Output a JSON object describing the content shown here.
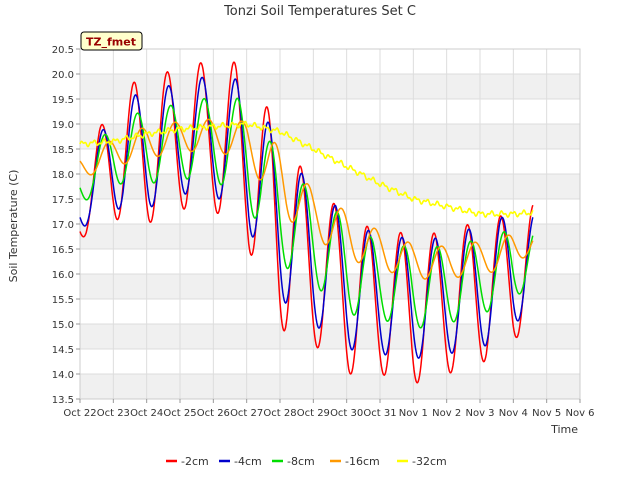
{
  "chart_data": {
    "type": "line",
    "title": "Tonzi Soil Temperatures Set C",
    "xlabel": "Time",
    "ylabel": "Soil Temperature (C)",
    "station_tag": "TZ_fmet",
    "ylim": [
      13.5,
      20.5
    ],
    "yticks": [
      13.5,
      14.0,
      14.5,
      15.0,
      15.5,
      16.0,
      16.5,
      17.0,
      17.5,
      18.0,
      18.5,
      19.0,
      19.5,
      20.0,
      20.5
    ],
    "ytick_labels": [
      "13.5",
      "14.0",
      "14.5",
      "15.0",
      "15.5",
      "16.0",
      "16.5",
      "17.0",
      "17.5",
      "18.0",
      "18.5",
      "19.0",
      "19.5",
      "20.0",
      "20.5"
    ],
    "x_start": "Oct 22",
    "xtick_labels": [
      "Oct 22",
      "Oct 23",
      "Oct 24",
      "Oct 25",
      "Oct 26",
      "Oct 27",
      "Oct 28",
      "Oct 29",
      "Oct 30",
      "Oct 31",
      "Nov 1",
      "Nov 2",
      "Nov 3",
      "Nov 4",
      "Nov 5",
      "Nov 6"
    ],
    "grid": true,
    "legend_position": "bottom",
    "daily": {
      "days": [
        "Oct 22",
        "Oct 23",
        "Oct 24",
        "Oct 25",
        "Oct 26",
        "Oct 27",
        "Oct 28",
        "Oct 29",
        "Oct 30",
        "Oct 31",
        "Nov 1",
        "Nov 2",
        "Nov 3",
        "Nov 4",
        "Nov 5"
      ],
      "note_x": "each series value pair = [daily minimum, daily maximum]"
    },
    "series": [
      {
        "name": "-2cm",
        "color": "#ff0000",
        "daily_min": [
          16.7,
          17.1,
          17.0,
          17.3,
          17.3,
          16.6,
          14.9,
          14.6,
          14.0,
          14.0,
          13.8,
          14.0,
          14.2,
          14.6,
          15.8
        ],
        "daily_max": [
          17.8,
          19.65,
          19.95,
          20.1,
          20.3,
          20.2,
          18.8,
          17.75,
          17.2,
          16.8,
          16.85,
          16.8,
          17.1,
          17.2,
          17.55
        ]
      },
      {
        "name": "-4cm",
        "color": "#0000cc",
        "daily_min": [
          16.9,
          17.3,
          17.3,
          17.6,
          17.6,
          17.0,
          15.5,
          15.0,
          14.5,
          14.4,
          14.3,
          14.4,
          14.5,
          14.9,
          16.0
        ],
        "daily_max": [
          17.9,
          19.35,
          19.7,
          19.8,
          20.0,
          19.85,
          18.6,
          17.7,
          17.2,
          16.7,
          16.75,
          16.7,
          17.0,
          17.2,
          17.25
        ]
      },
      {
        "name": "-8cm",
        "color": "#00dd00",
        "daily_min": [
          17.4,
          17.8,
          17.8,
          17.9,
          17.9,
          17.4,
          16.2,
          15.8,
          15.2,
          15.1,
          14.9,
          15.0,
          15.2,
          15.4,
          16.4
        ],
        "daily_max": [
          18.2,
          19.0,
          19.3,
          19.4,
          19.55,
          19.5,
          18.3,
          17.6,
          17.1,
          16.6,
          16.55,
          16.55,
          16.7,
          16.9,
          16.95
        ]
      },
      {
        "name": "-16cm",
        "color": "#ff9900",
        "daily_min": [
          17.9,
          18.15,
          18.3,
          18.45,
          18.45,
          18.3,
          17.2,
          16.75,
          16.3,
          16.1,
          15.9,
          15.9,
          16.0,
          16.1,
          16.8
        ],
        "daily_max": [
          18.35,
          18.7,
          18.95,
          19.05,
          19.1,
          19.05,
          18.55,
          17.65,
          17.25,
          16.85,
          16.6,
          16.55,
          16.65,
          16.8,
          16.9
        ]
      },
      {
        "name": "-32cm",
        "color": "#ffff00",
        "daily_mean": [
          18.6,
          18.65,
          18.8,
          18.9,
          18.95,
          19.0,
          18.85,
          18.5,
          18.15,
          17.8,
          17.5,
          17.35,
          17.2,
          17.2,
          17.25
        ]
      }
    ],
    "x_end_days": 13.6
  }
}
